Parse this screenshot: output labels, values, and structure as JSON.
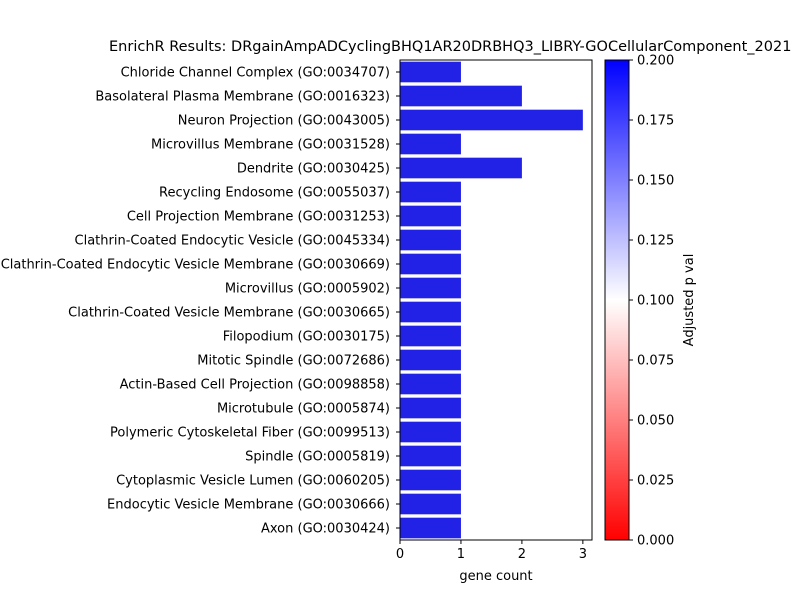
{
  "chart_data": {
    "type": "bar",
    "orientation": "horizontal",
    "title": "EnrichR Results: DRgainAmpADCyclingBHQ1AR20DRBHQ3_LIBRY-GOCellularComponent_2021",
    "xlabel": "gene count",
    "ylabel": "",
    "xlim": [
      0,
      3.15
    ],
    "xticks": [
      0,
      1,
      2,
      3
    ],
    "grid": false,
    "bar_color": "#2222e6",
    "categories": [
      "Chloride Channel Complex (GO:0034707)",
      "Basolateral Plasma Membrane (GO:0016323)",
      "Neuron Projection (GO:0043005)",
      "Microvillus Membrane (GO:0031528)",
      "Dendrite (GO:0030425)",
      "Recycling Endosome (GO:0055037)",
      "Cell Projection Membrane (GO:0031253)",
      "Clathrin-Coated Endocytic Vesicle (GO:0045334)",
      "Clathrin-Coated Endocytic Vesicle Membrane (GO:0030669)",
      "Microvillus (GO:0005902)",
      "Clathrin-Coated Vesicle Membrane (GO:0030665)",
      "Filopodium (GO:0030175)",
      "Mitotic Spindle (GO:0072686)",
      "Actin-Based Cell Projection (GO:0098858)",
      "Microtubule (GO:0005874)",
      "Polymeric Cytoskeletal Fiber (GO:0099513)",
      "Spindle (GO:0005819)",
      "Cytoplasmic Vesicle Lumen (GO:0060205)",
      "Endocytic Vesicle Membrane (GO:0030666)",
      "Axon (GO:0030424)"
    ],
    "values": [
      1,
      2,
      3,
      1,
      2,
      1,
      1,
      1,
      1,
      1,
      1,
      1,
      1,
      1,
      1,
      1,
      1,
      1,
      1,
      1
    ],
    "colorbar": {
      "label": "Adjusted p val",
      "range": [
        0,
        0.2
      ],
      "ticks": [
        "0.000",
        "0.025",
        "0.050",
        "0.075",
        "0.100",
        "0.125",
        "0.150",
        "0.175",
        "0.200"
      ],
      "colors": [
        "#ff0000",
        "#ffffff",
        "#0000ff"
      ]
    }
  }
}
